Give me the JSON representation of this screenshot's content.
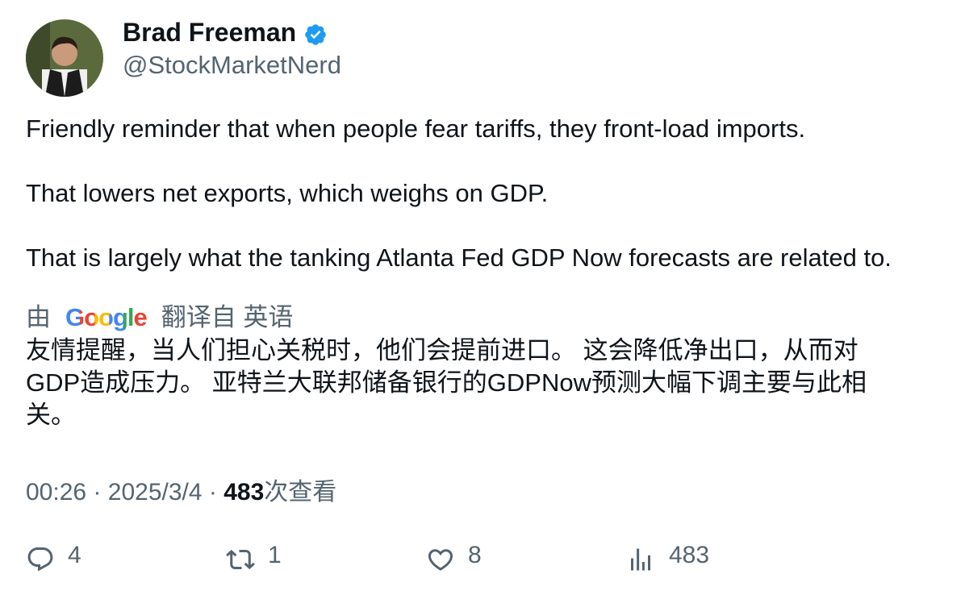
{
  "author": {
    "name": "Brad Freeman",
    "handle": "@StockMarketNerd"
  },
  "tweet": {
    "paragraphs": [
      "Friendly reminder that when people fear tariffs, they front-load imports.",
      "That lowers net exports, which weighs on GDP.",
      "That is largely what the tanking Atlanta Fed GDP Now forecasts are related to."
    ]
  },
  "translation": {
    "prefix": "由",
    "brand": "Google",
    "suffix": "翻译自 英语",
    "text": "友情提醒，当人们担心关税时，他们会提前进口。 这会降低净出口，从而对GDP造成压力。 亚特兰大联邦储备银行的GDPNow预测大幅下调主要与此相关。"
  },
  "meta": {
    "time": "00:26",
    "separator": "·",
    "date": "2025/3/4",
    "views": "483",
    "views_label": "次查看"
  },
  "actions": {
    "replies": "4",
    "retweets": "1",
    "likes": "8",
    "views": "483"
  }
}
